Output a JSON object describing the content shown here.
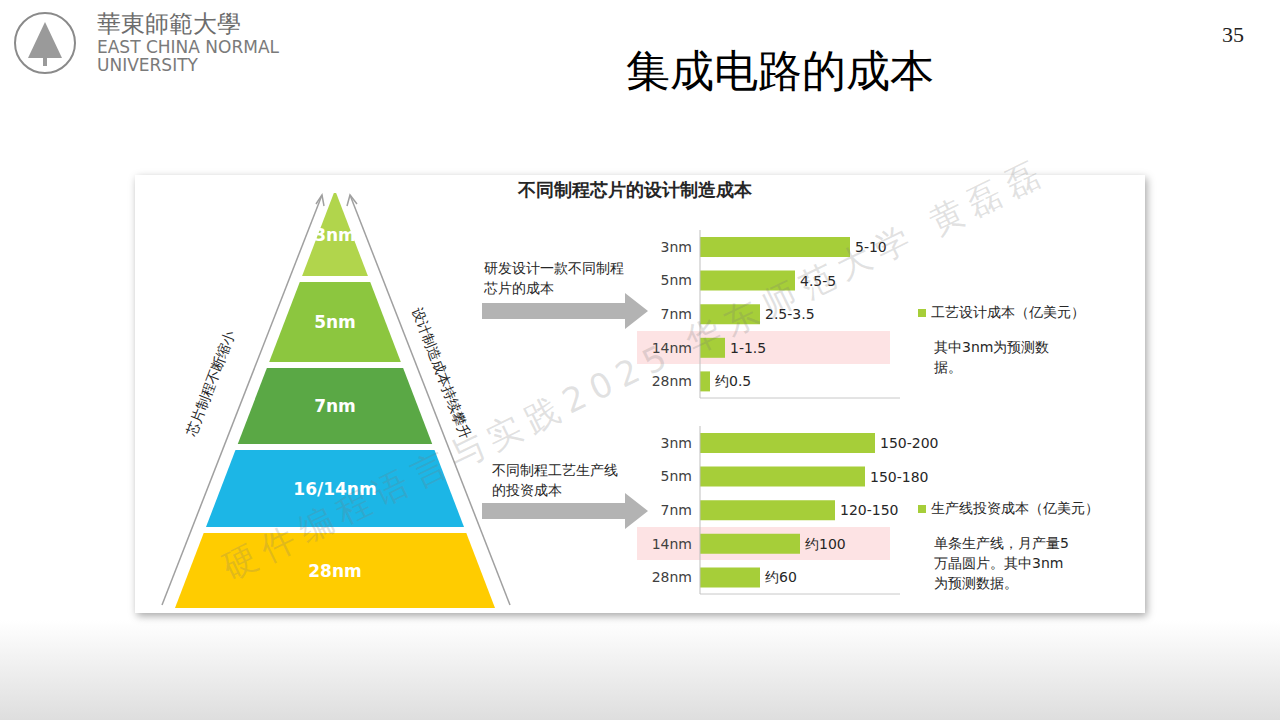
{
  "page_number": "35",
  "logo": {
    "name": "華東師範大學",
    "english": [
      "EAST CHINA NORMAL",
      "UNIVERSITY"
    ]
  },
  "title": "集成电路的成本",
  "panel_title": "不同制程芯片的设计制造成本",
  "watermark": "硬件编程语言与实践2025 华东师范大学 黄磊磊",
  "pyramid": {
    "layers": [
      "3nm",
      "5nm",
      "7nm",
      "16/14nm",
      "28nm"
    ],
    "colors": [
      "#b1d54c",
      "#8cc63f",
      "#5aa845",
      "#1cb6e6",
      "#ffcc00"
    ],
    "left_label": "芯片制程不断缩小",
    "right_label": "设计制造成本持续攀升"
  },
  "chart_data": [
    {
      "type": "bar",
      "orientation": "horizontal",
      "title": "研发设计一款不同制程芯片的成本",
      "categories": [
        "3nm",
        "5nm",
        "7nm",
        "14nm",
        "28nm"
      ],
      "series": [
        {
          "name": "工艺设计成本（亿美元）",
          "color": "#a6ce39",
          "values": [
            7.5,
            4.75,
            3,
            1.25,
            0.5
          ],
          "value_labels": [
            "5-10",
            "4.5-5",
            "2.5-3.5",
            "1-1.5",
            "约0.5"
          ]
        }
      ],
      "xlim": [
        0,
        10
      ],
      "tick_labels": "y",
      "data_labels": true,
      "legend": "right",
      "annotations": [
        "其中3nm为预测数据。"
      ]
    },
    {
      "type": "bar",
      "orientation": "horizontal",
      "title": "不同制程工艺生产线的投资成本",
      "categories": [
        "3nm",
        "5nm",
        "7nm",
        "14nm",
        "28nm"
      ],
      "series": [
        {
          "name": "生产线投资成本（亿美元）",
          "color": "#a6ce39",
          "values": [
            175,
            165,
            135,
            100,
            60
          ],
          "value_labels": [
            "150-200",
            "150-180",
            "120-150",
            "约100",
            "约60"
          ]
        }
      ],
      "xlim": [
        0,
        200
      ],
      "tick_labels": "y",
      "data_labels": true,
      "legend": "right",
      "annotations": [
        "单条生产线，月产量5万晶圆片。其中3nm为预测数据。"
      ]
    }
  ]
}
